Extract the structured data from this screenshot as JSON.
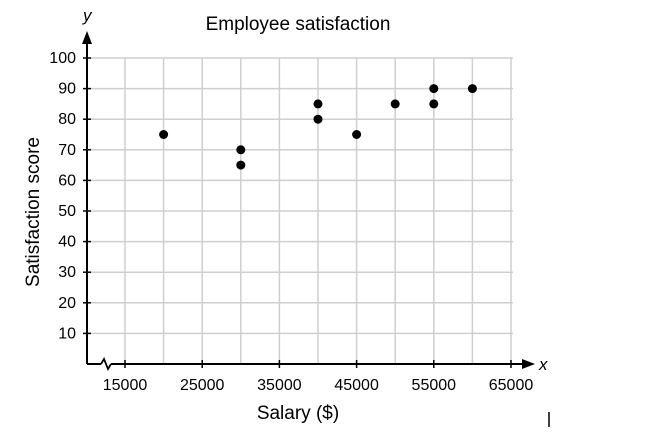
{
  "chart_data": {
    "type": "scatter",
    "title": "Employee satisfaction",
    "xlabel": "Salary ($)",
    "ylabel": "Satisfaction score",
    "x_axis_letter": "x",
    "y_axis_letter": "y",
    "xlim": [
      10000,
      65000
    ],
    "ylim": [
      0,
      100
    ],
    "x_axis_break": true,
    "grid": true,
    "x_ticks": [
      15000,
      25000,
      35000,
      45000,
      55000,
      65000
    ],
    "y_ticks": [
      10,
      20,
      30,
      40,
      50,
      60,
      70,
      80,
      90,
      100
    ],
    "points": [
      {
        "x": 20000,
        "y": 75
      },
      {
        "x": 30000,
        "y": 70
      },
      {
        "x": 30000,
        "y": 65
      },
      {
        "x": 40000,
        "y": 85
      },
      {
        "x": 40000,
        "y": 80
      },
      {
        "x": 45000,
        "y": 75
      },
      {
        "x": 50000,
        "y": 85
      },
      {
        "x": 55000,
        "y": 90
      },
      {
        "x": 55000,
        "y": 85
      },
      {
        "x": 60000,
        "y": 90
      }
    ],
    "point_color": "#000000"
  }
}
